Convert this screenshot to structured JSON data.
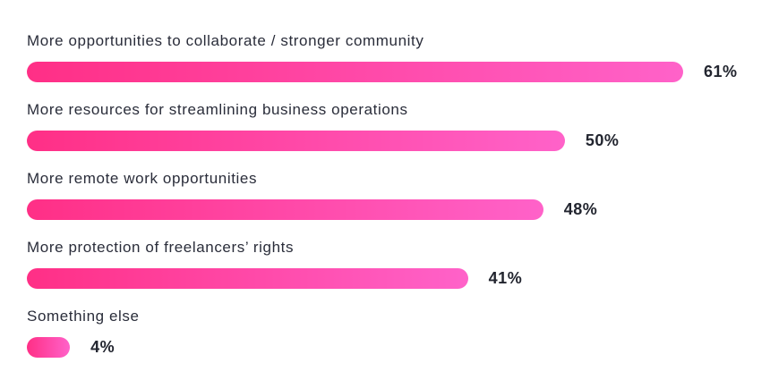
{
  "chart_data": {
    "type": "bar",
    "orientation": "horizontal",
    "categories": [
      "More opportunities to collaborate / stronger community",
      "More resources for streamlining business operations",
      "More remote work opportunities",
      "More protection of freelancers’ rights",
      "Something else"
    ],
    "values": [
      61,
      50,
      48,
      41,
      4
    ],
    "value_labels": [
      "61%",
      "50%",
      "48%",
      "41%",
      "4%"
    ],
    "title": "",
    "xlabel": "",
    "ylabel": "",
    "xlim": [
      0,
      61
    ],
    "grid": false,
    "legend": "none",
    "colors": {
      "bar_start": "#ff2f86",
      "bar_end": "#ff62c9",
      "label_text": "#2a2d3a",
      "value_text": "#22252f"
    }
  }
}
